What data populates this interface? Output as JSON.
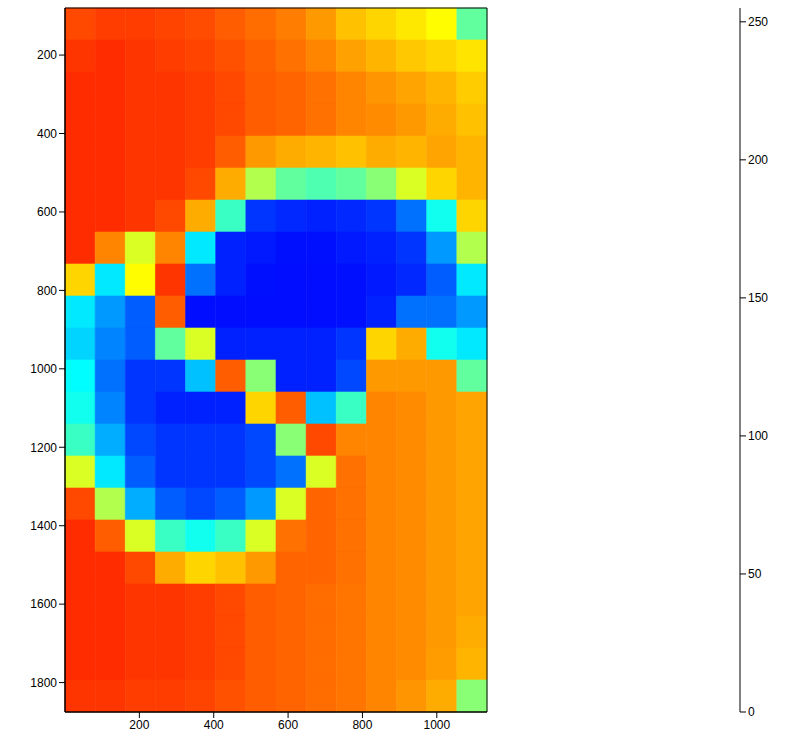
{
  "chart_data": {
    "type": "heatmap",
    "xlim": [
      0,
      1135
    ],
    "ylim": [
      80,
      1875
    ],
    "xticks": [
      200,
      400,
      600,
      800,
      1000
    ],
    "yticks": [
      200,
      400,
      600,
      800,
      1000,
      1200,
      1400,
      1600,
      1800
    ],
    "cells": [
      [
        205,
        208,
        208,
        206,
        204,
        200,
        196,
        192,
        185,
        175,
        170,
        165,
        160,
        120
      ],
      [
        210,
        212,
        210,
        208,
        206,
        203,
        199,
        195,
        190,
        183,
        178,
        173,
        170,
        166
      ],
      [
        212,
        212,
        210,
        210,
        208,
        205,
        200,
        198,
        195,
        190,
        186,
        182,
        178,
        172
      ],
      [
        212,
        212,
        210,
        210,
        208,
        205,
        200,
        198,
        195,
        190,
        188,
        185,
        180,
        175
      ],
      [
        212,
        212,
        210,
        210,
        208,
        200,
        185,
        180,
        178,
        175,
        180,
        178,
        182,
        178
      ],
      [
        212,
        212,
        210,
        210,
        205,
        180,
        140,
        120,
        115,
        120,
        130,
        150,
        170,
        178
      ],
      [
        212,
        212,
        210,
        205,
        180,
        110,
        45,
        42,
        40,
        42,
        45,
        60,
        100,
        170
      ],
      [
        212,
        190,
        150,
        190,
        90,
        40,
        38,
        36,
        36,
        38,
        40,
        45,
        70,
        140
      ],
      [
        170,
        90,
        160,
        210,
        60,
        40,
        36,
        35,
        35,
        36,
        38,
        42,
        55,
        90
      ],
      [
        90,
        70,
        55,
        200,
        35,
        35,
        35,
        35,
        35,
        36,
        40,
        60,
        60,
        70
      ],
      [
        85,
        65,
        55,
        120,
        150,
        40,
        40,
        40,
        40,
        45,
        170,
        180,
        100,
        90
      ],
      [
        95,
        60,
        45,
        45,
        80,
        200,
        130,
        40,
        40,
        50,
        185,
        185,
        185,
        120
      ],
      [
        100,
        65,
        45,
        40,
        40,
        40,
        170,
        200,
        80,
        110,
        190,
        188,
        185,
        182
      ],
      [
        110,
        75,
        50,
        45,
        45,
        45,
        50,
        130,
        205,
        190,
        190,
        188,
        185,
        182
      ],
      [
        150,
        90,
        55,
        45,
        45,
        45,
        50,
        60,
        150,
        195,
        190,
        188,
        185,
        182
      ],
      [
        205,
        140,
        75,
        55,
        50,
        55,
        70,
        150,
        198,
        195,
        190,
        188,
        185,
        182
      ],
      [
        212,
        200,
        150,
        110,
        100,
        110,
        150,
        195,
        198,
        195,
        190,
        188,
        185,
        182
      ],
      [
        212,
        212,
        205,
        180,
        170,
        175,
        185,
        198,
        198,
        195,
        190,
        188,
        185,
        182
      ],
      [
        212,
        212,
        210,
        210,
        208,
        205,
        200,
        198,
        196,
        194,
        190,
        188,
        185,
        182
      ],
      [
        212,
        212,
        210,
        210,
        208,
        205,
        200,
        198,
        196,
        194,
        190,
        188,
        185,
        180
      ],
      [
        212,
        212,
        210,
        210,
        208,
        205,
        200,
        198,
        196,
        194,
        190,
        188,
        184,
        178
      ],
      [
        210,
        210,
        208,
        208,
        206,
        203,
        200,
        198,
        196,
        194,
        190,
        186,
        180,
        130
      ]
    ],
    "colorbar": {
      "range": [
        0,
        255
      ],
      "ticks": [
        0,
        50,
        100,
        150,
        200,
        250
      ]
    }
  }
}
